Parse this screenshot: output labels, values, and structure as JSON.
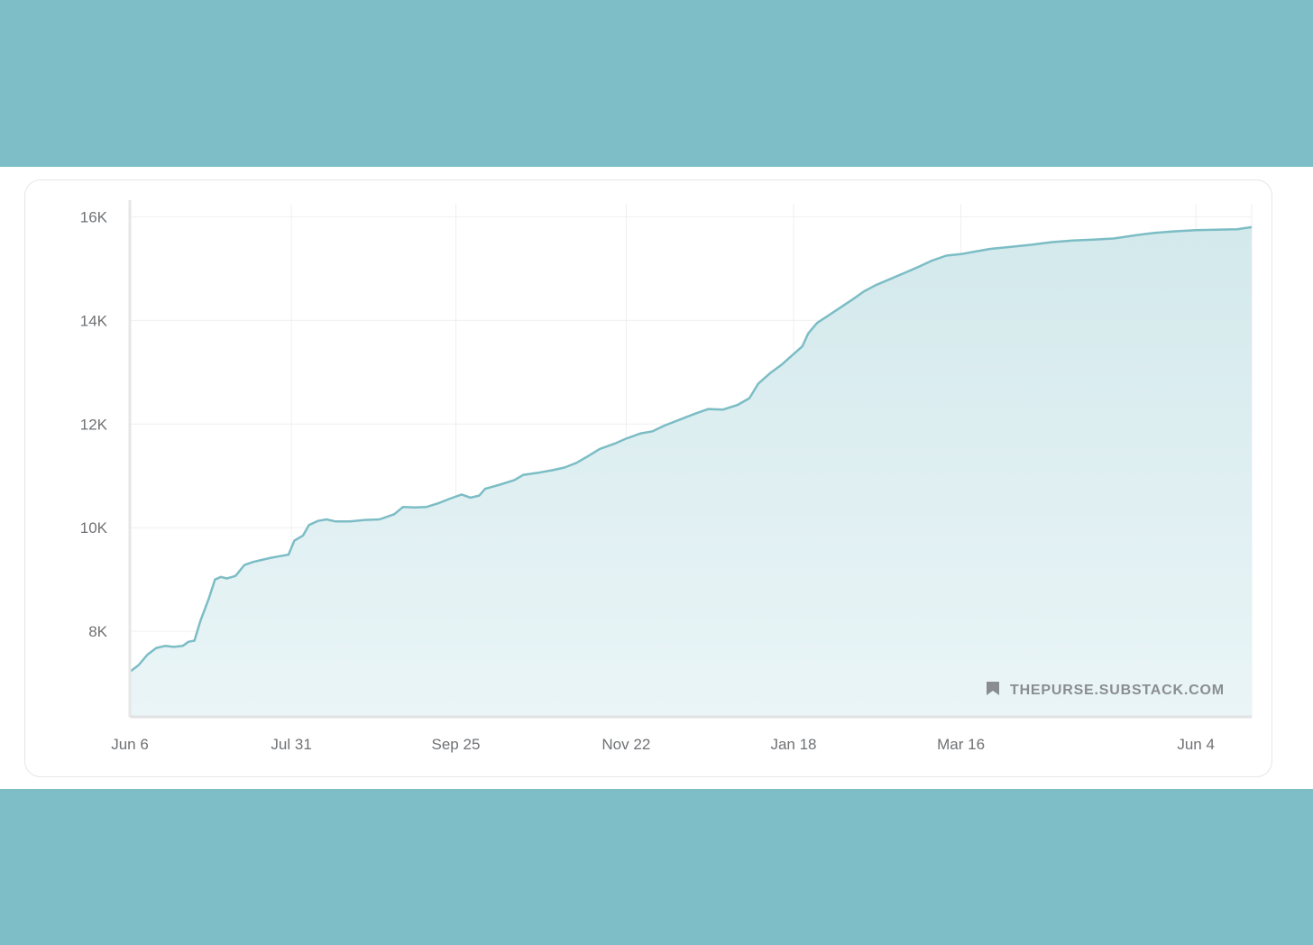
{
  "colors": {
    "background_band": "#7dbec7",
    "card": "#ffffff",
    "line": "#7cbdc5",
    "fill_top": "#d3e9ec",
    "fill_bottom": "#eaf5f7",
    "grid": "#efefef",
    "tick_text": "#6f7174"
  },
  "watermark": {
    "icon": "bookmark-icon",
    "text": "THEPURSE.SUBSTACK.COM"
  },
  "chart_data": {
    "type": "area",
    "title": "",
    "xlabel": "",
    "ylabel": "",
    "x_ticks": [
      "Jun 6",
      "Jul 31",
      "Sep 25",
      "Nov 22",
      "Jan 18",
      "Mar 16",
      "Jun 4"
    ],
    "y_ticks": [
      "8K",
      "10K",
      "12K",
      "14K",
      "16K"
    ],
    "y_tick_values": [
      8000,
      10000,
      12000,
      14000,
      16000
    ],
    "ylim": [
      6350,
      16250
    ],
    "xlim": [
      "Jun 6",
      "Jun 23"
    ],
    "grid": true,
    "legend": "none",
    "series": [
      {
        "points": [
          [
            "Jun 6",
            7220
          ],
          [
            "Jun 9",
            7350
          ],
          [
            "Jun 12",
            7550
          ],
          [
            "Jun 15",
            7680
          ],
          [
            "Jun 18",
            7720
          ],
          [
            "Jun 21",
            7700
          ],
          [
            "Jun 24",
            7720
          ],
          [
            "Jun 26",
            7800
          ],
          [
            "Jun 28",
            7820
          ],
          [
            "Jun 30",
            8200
          ],
          [
            "Jul 3",
            8650
          ],
          [
            "Jul 5",
            9000
          ],
          [
            "Jul 7",
            9050
          ],
          [
            "Jul 9",
            9020
          ],
          [
            "Jul 12",
            9070
          ],
          [
            "Jul 15",
            9280
          ],
          [
            "Jul 18",
            9340
          ],
          [
            "Jul 21",
            9380
          ],
          [
            "Jul 24",
            9420
          ],
          [
            "Jul 27",
            9450
          ],
          [
            "Jul 30",
            9480
          ],
          [
            "Aug 1",
            9750
          ],
          [
            "Aug 4",
            9850
          ],
          [
            "Aug 6",
            10050
          ],
          [
            "Aug 9",
            10130
          ],
          [
            "Aug 12",
            10160
          ],
          [
            "Aug 15",
            10120
          ],
          [
            "Aug 20",
            10120
          ],
          [
            "Aug 25",
            10150
          ],
          [
            "Aug 30",
            10160
          ],
          [
            "Sep 4",
            10260
          ],
          [
            "Sep 7",
            10400
          ],
          [
            "Sep 11",
            10390
          ],
          [
            "Sep 15",
            10400
          ],
          [
            "Sep 19",
            10470
          ],
          [
            "Sep 23",
            10560
          ],
          [
            "Sep 27",
            10640
          ],
          [
            "Sep 30",
            10580
          ],
          [
            "Oct 3",
            10620
          ],
          [
            "Oct 5",
            10750
          ],
          [
            "Oct 10",
            10830
          ],
          [
            "Oct 15",
            10920
          ],
          [
            "Oct 18",
            11020
          ],
          [
            "Oct 23",
            11060
          ],
          [
            "Oct 28",
            11110
          ],
          [
            "Nov 1",
            11160
          ],
          [
            "Nov 5",
            11250
          ],
          [
            "Nov 9",
            11380
          ],
          [
            "Nov 13",
            11520
          ],
          [
            "Nov 18",
            11620
          ],
          [
            "Nov 22",
            11720
          ],
          [
            "Nov 27",
            11820
          ],
          [
            "Dec 1",
            11860
          ],
          [
            "Dec 5",
            11970
          ],
          [
            "Dec 10",
            12080
          ],
          [
            "Dec 15",
            12190
          ],
          [
            "Dec 20",
            12290
          ],
          [
            "Dec 25",
            12280
          ],
          [
            "Dec 30",
            12370
          ],
          [
            "Jan 3",
            12500
          ],
          [
            "Jan 6",
            12780
          ],
          [
            "Jan 10",
            12980
          ],
          [
            "Jan 14",
            13150
          ],
          [
            "Jan 18",
            13350
          ],
          [
            "Jan 21",
            13500
          ],
          [
            "Jan 23",
            13750
          ],
          [
            "Jan 26",
            13950
          ],
          [
            "Jan 30",
            14100
          ],
          [
            "Feb 3",
            14250
          ],
          [
            "Feb 7",
            14400
          ],
          [
            "Feb 11",
            14560
          ],
          [
            "Feb 15",
            14680
          ],
          [
            "Feb 20",
            14800
          ],
          [
            "Feb 25",
            14920
          ],
          [
            "Mar 1",
            15020
          ],
          [
            "Mar 6",
            15150
          ],
          [
            "Mar 11",
            15250
          ],
          [
            "Mar 16",
            15280
          ],
          [
            "Mar 21",
            15330
          ],
          [
            "Mar 26",
            15380
          ],
          [
            "Apr 2",
            15420
          ],
          [
            "Apr 9",
            15460
          ],
          [
            "Apr 16",
            15510
          ],
          [
            "Apr 23",
            15540
          ],
          [
            "Apr 30",
            15560
          ],
          [
            "May 7",
            15580
          ],
          [
            "May 14",
            15640
          ],
          [
            "May 21",
            15690
          ],
          [
            "May 28",
            15720
          ],
          [
            "Jun 4",
            15740
          ],
          [
            "Jun 11",
            15750
          ],
          [
            "Jun 18",
            15760
          ],
          [
            "Jun 23",
            15800
          ]
        ]
      }
    ]
  }
}
